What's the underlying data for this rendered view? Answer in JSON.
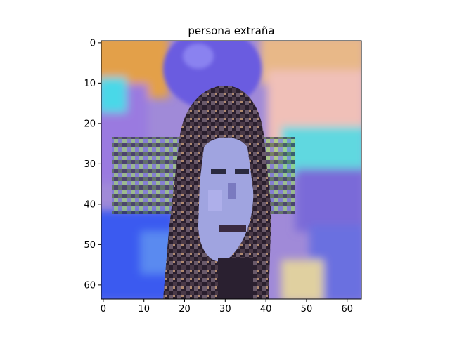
{
  "chart_data": {
    "type": "heatmap",
    "title": "persona extraña",
    "xlabel": "",
    "ylabel": "",
    "image_size": [
      64,
      64
    ],
    "xlim": [
      -0.5,
      63.5
    ],
    "ylim": [
      63.5,
      -0.5
    ],
    "x_ticks": [
      0,
      10,
      20,
      30,
      40,
      50,
      60
    ],
    "y_ticks": [
      0,
      10,
      20,
      30,
      40,
      50,
      60
    ],
    "grid": false,
    "image_description_colors": {
      "background_top_left": "#e3a04a",
      "balloon": "#6a5ce0",
      "right_background": "#f0c0b8",
      "left_background": "#9a7ae0",
      "cyan_accent": "#48d8e8",
      "face": "#a0a4e0",
      "hair": "#3a2a3a",
      "blue_lower": "#3a5af0"
    }
  }
}
